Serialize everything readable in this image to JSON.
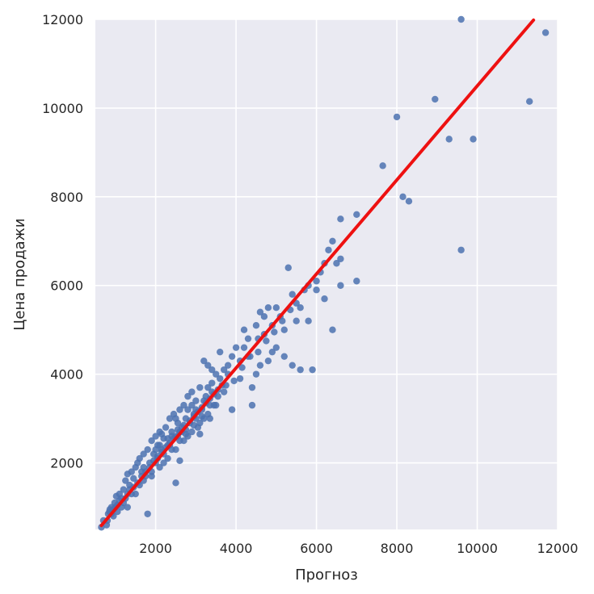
{
  "chart_data": {
    "type": "scatter",
    "title": "",
    "xlabel": "Прогноз",
    "ylabel": "Цена продажи",
    "xlim": [
      500,
      12000
    ],
    "ylim": [
      500,
      12000
    ],
    "xticks": [
      2000,
      4000,
      6000,
      8000,
      10000,
      12000
    ],
    "yticks": [
      2000,
      4000,
      6000,
      8000,
      10000,
      12000
    ],
    "xtick_labels": [
      "2000",
      "4000",
      "6000",
      "8000",
      "10000",
      "12000"
    ],
    "ytick_labels": [
      "2000",
      "4000",
      "6000",
      "8000",
      "10000",
      "12000"
    ],
    "grid": true,
    "background_color": "#eaeaf2",
    "grid_color": "#ffffff",
    "point_color": "#4c72b0",
    "regression_color": "#ee1111",
    "regression_line": {
      "slope": 1.06,
      "intercept": -100,
      "x_range": [
        650,
        11400
      ]
    },
    "points": [
      [
        650,
        550
      ],
      [
        700,
        700
      ],
      [
        780,
        600
      ],
      [
        820,
        850
      ],
      [
        860,
        950
      ],
      [
        900,
        1000
      ],
      [
        950,
        800
      ],
      [
        980,
        1100
      ],
      [
        1020,
        1250
      ],
      [
        1050,
        900
      ],
      [
        1100,
        1300
      ],
      [
        1150,
        1200
      ],
      [
        1200,
        1400
      ],
      [
        1250,
        1600
      ],
      [
        1300,
        1750
      ],
      [
        1350,
        1500
      ],
      [
        1400,
        1800
      ],
      [
        1450,
        1650
      ],
      [
        1500,
        1900
      ],
      [
        1550,
        2000
      ],
      [
        1600,
        2100
      ],
      [
        1650,
        1800
      ],
      [
        1700,
        2200
      ],
      [
        1750,
        1700
      ],
      [
        1800,
        2300
      ],
      [
        1850,
        2000
      ],
      [
        1900,
        2500
      ],
      [
        1950,
        2200
      ],
      [
        2000,
        2600
      ],
      [
        2050,
        2100
      ],
      [
        2100,
        2700
      ],
      [
        2150,
        2300
      ],
      [
        2200,
        2550
      ],
      [
        2250,
        2800
      ],
      [
        2300,
        2400
      ],
      [
        2350,
        3000
      ],
      [
        2400,
        2700
      ],
      [
        2450,
        3100
      ],
      [
        2500,
        2600
      ],
      [
        2550,
        2900
      ],
      [
        2600,
        3200
      ],
      [
        2650,
        2800
      ],
      [
        2700,
        3300
      ],
      [
        2750,
        3000
      ],
      [
        2800,
        3500
      ],
      [
        2850,
        2900
      ],
      [
        2900,
        3600
      ],
      [
        2950,
        3100
      ],
      [
        3000,
        3400
      ],
      [
        3050,
        2800
      ],
      [
        3100,
        3700
      ],
      [
        3150,
        3200
      ],
      [
        3200,
        4300
      ],
      [
        3250,
        3500
      ],
      [
        3300,
        4200
      ],
      [
        3350,
        3000
      ],
      [
        3400,
        3800
      ],
      [
        3450,
        3300
      ],
      [
        3500,
        4000
      ],
      [
        3600,
        4500
      ],
      [
        3700,
        3600
      ],
      [
        3800,
        4200
      ],
      [
        3900,
        3200
      ],
      [
        4000,
        4600
      ],
      [
        4100,
        3900
      ],
      [
        4200,
        5000
      ],
      [
        4300,
        4400
      ],
      [
        4400,
        3300
      ],
      [
        4500,
        5100
      ],
      [
        4550,
        4800
      ],
      [
        4600,
        5400
      ],
      [
        4700,
        4900
      ],
      [
        4800,
        5500
      ],
      [
        4900,
        5100
      ],
      [
        5000,
        4600
      ],
      [
        5100,
        5300
      ],
      [
        5200,
        4400
      ],
      [
        5300,
        6400
      ],
      [
        5400,
        4200
      ],
      [
        5500,
        5600
      ],
      [
        5600,
        4100
      ],
      [
        5700,
        5900
      ],
      [
        5800,
        5200
      ],
      [
        5900,
        4100
      ],
      [
        6000,
        6100
      ],
      [
        6100,
        6300
      ],
      [
        6200,
        5700
      ],
      [
        6300,
        6800
      ],
      [
        6400,
        5000
      ],
      [
        6500,
        6500
      ],
      [
        6600,
        6000
      ],
      [
        6600,
        7500
      ],
      [
        7000,
        7600
      ],
      [
        7000,
        6100
      ],
      [
        7650,
        8700
      ],
      [
        8000,
        9800
      ],
      [
        8150,
        8000
      ],
      [
        8300,
        7900
      ],
      [
        8950,
        10200
      ],
      [
        9300,
        9300
      ],
      [
        9600,
        12000
      ],
      [
        9600,
        6800
      ],
      [
        9900,
        9300
      ],
      [
        11300,
        10150
      ],
      [
        11700,
        11700
      ],
      [
        1300,
        1000
      ],
      [
        1500,
        1300
      ],
      [
        1700,
        1900
      ],
      [
        1900,
        1700
      ],
      [
        2100,
        2400
      ],
      [
        2300,
        2100
      ],
      [
        2500,
        2300
      ],
      [
        2700,
        2500
      ],
      [
        2900,
        2700
      ],
      [
        3100,
        2900
      ],
      [
        3300,
        3100
      ],
      [
        2600,
        2050
      ],
      [
        1800,
        850
      ],
      [
        2500,
        1550
      ],
      [
        4400,
        3700
      ],
      [
        4800,
        4300
      ],
      [
        5200,
        5000
      ],
      [
        5600,
        5500
      ],
      [
        6000,
        5900
      ],
      [
        6600,
        6600
      ],
      [
        6200,
        6500
      ],
      [
        6400,
        7000
      ],
      [
        3600,
        3900
      ],
      [
        3400,
        4100
      ],
      [
        3000,
        3000
      ],
      [
        2000,
        2000
      ],
      [
        1600,
        1500
      ],
      [
        1400,
        1300
      ],
      [
        2800,
        3200
      ],
      [
        3200,
        3400
      ],
      [
        3800,
        4000
      ],
      [
        4200,
        4600
      ],
      [
        4600,
        4200
      ],
      [
        5000,
        5500
      ],
      [
        5400,
        5800
      ],
      [
        5800,
        6000
      ],
      [
        5500,
        5200
      ],
      [
        4700,
        5300
      ],
      [
        4900,
        4500
      ],
      [
        2200,
        2200
      ],
      [
        2400,
        2600
      ],
      [
        2600,
        2500
      ],
      [
        1000,
        1000
      ],
      [
        1200,
        1100
      ],
      [
        900,
        850
      ],
      [
        1100,
        1150
      ],
      [
        1300,
        1300
      ],
      [
        2050,
        2400
      ],
      [
        2150,
        2650
      ],
      [
        2350,
        2450
      ],
      [
        2550,
        2750
      ],
      [
        2750,
        2650
      ],
      [
        2950,
        2850
      ],
      [
        3150,
        3050
      ],
      [
        3350,
        3300
      ],
      [
        3550,
        3500
      ],
      [
        3750,
        3750
      ],
      [
        3950,
        3850
      ],
      [
        4150,
        4150
      ],
      [
        4350,
        4400
      ],
      [
        4550,
        4500
      ],
      [
        4750,
        4750
      ],
      [
        4950,
        4950
      ],
      [
        5150,
        5200
      ],
      [
        5350,
        5450
      ],
      [
        2100,
        1900
      ],
      [
        2300,
        2550
      ],
      [
        2500,
        3000
      ],
      [
        2700,
        2850
      ],
      [
        2900,
        3300
      ],
      [
        3100,
        2650
      ],
      [
        3300,
        3700
      ],
      [
        3500,
        3300
      ],
      [
        3700,
        4100
      ],
      [
        3900,
        4400
      ],
      [
        4100,
        4300
      ],
      [
        4300,
        4800
      ],
      [
        4500,
        4000
      ],
      [
        1700,
        1600
      ],
      [
        1900,
        1800
      ],
      [
        2000,
        2300
      ],
      [
        2200,
        2000
      ],
      [
        2400,
        2300
      ],
      [
        2600,
        2700
      ],
      [
        2800,
        2600
      ],
      [
        3000,
        3200
      ],
      [
        3200,
        3000
      ],
      [
        3400,
        3600
      ],
      [
        800,
        700
      ],
      [
        850,
        900
      ],
      [
        950,
        950
      ],
      [
        1050,
        1050
      ],
      [
        1150,
        1000
      ],
      [
        1250,
        1200
      ],
      [
        1350,
        1400
      ],
      [
        1450,
        1450
      ],
      [
        1550,
        1550
      ],
      [
        1650,
        1700
      ],
      [
        1750,
        1800
      ],
      [
        1850,
        1900
      ],
      [
        1950,
        2050
      ],
      [
        2050,
        2150
      ],
      [
        2150,
        2250
      ],
      [
        2250,
        2350
      ],
      [
        2350,
        2400
      ],
      [
        2450,
        2550
      ],
      [
        2550,
        2600
      ],
      [
        2650,
        2700
      ],
      [
        2750,
        2750
      ],
      [
        2850,
        2950
      ],
      [
        2950,
        3050
      ],
      [
        3050,
        3150
      ],
      [
        3150,
        3250
      ],
      [
        3250,
        3350
      ],
      [
        3350,
        3450
      ],
      [
        3450,
        3550
      ],
      [
        3550,
        3650
      ],
      [
        3650,
        3750
      ]
    ]
  }
}
